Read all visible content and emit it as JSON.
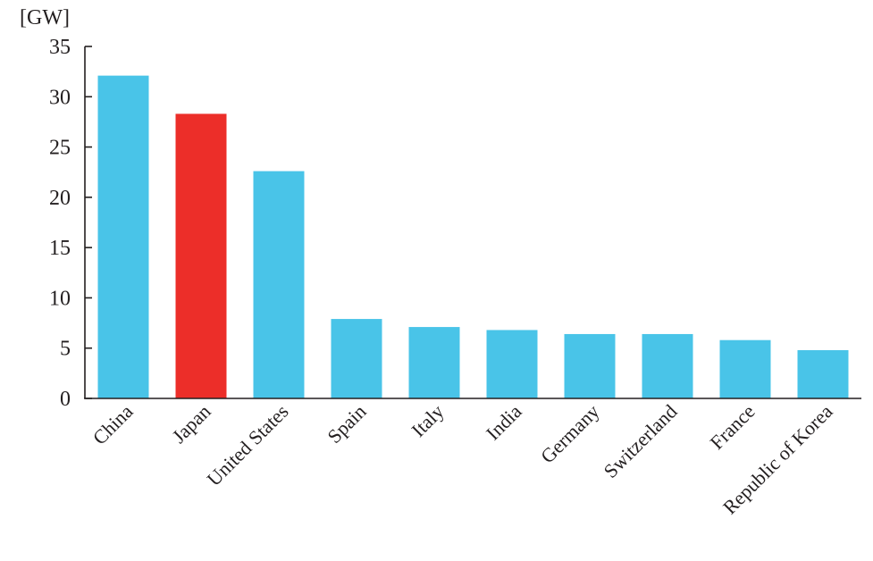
{
  "chart_data": {
    "type": "bar",
    "unit_label": "[GW]",
    "categories": [
      "China",
      "Japan",
      "United States",
      "Spain",
      "Italy",
      "India",
      "Germany",
      "Switzerland",
      "France",
      "Republic of Korea"
    ],
    "values": [
      32.1,
      28.3,
      22.6,
      7.9,
      7.1,
      6.8,
      6.4,
      6.4,
      5.8,
      4.8
    ],
    "colors": [
      "#49c4e8",
      "#ec2e29",
      "#49c4e8",
      "#49c4e8",
      "#49c4e8",
      "#49c4e8",
      "#49c4e8",
      "#49c4e8",
      "#49c4e8",
      "#49c4e8"
    ],
    "yticks": [
      0,
      5,
      10,
      15,
      20,
      25,
      30,
      35
    ],
    "ylim": [
      0,
      35
    ],
    "grid": false,
    "legend": "none"
  }
}
